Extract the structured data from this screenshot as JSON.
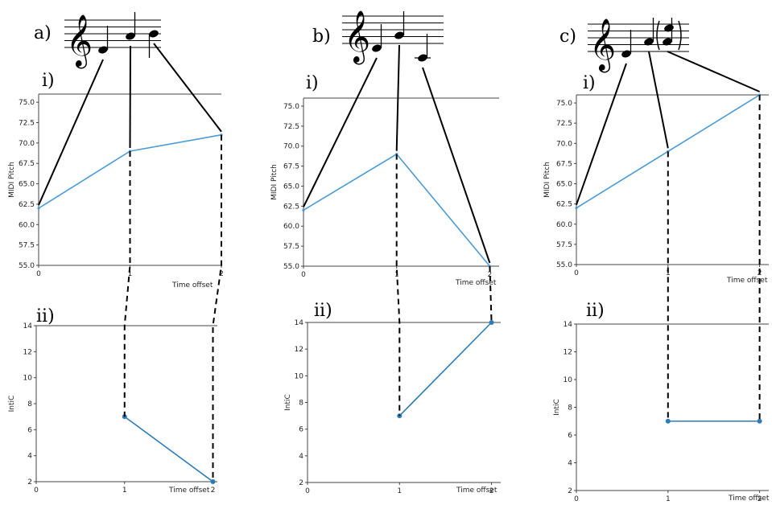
{
  "chart_data": [
    {
      "panel": "a)",
      "plots": [
        {
          "sublabel": "i)",
          "type": "line",
          "xlabel": "Time offset",
          "ylabel": "MIDI Pitch",
          "xlim": [
            0,
            2
          ],
          "ylim": [
            55,
            76
          ],
          "xticks": [
            "0",
            "1",
            "2"
          ],
          "yticks": [
            "55.0",
            "57.5",
            "60.0",
            "62.5",
            "65.0",
            "67.5",
            "70.0",
            "72.5",
            "75.0"
          ],
          "x": [
            0,
            1,
            2
          ],
          "y": [
            62,
            69,
            71
          ],
          "color": "#4a9bd4"
        },
        {
          "sublabel": "ii)",
          "type": "line",
          "xlabel": "Time offset",
          "ylabel": "IntiC",
          "xlim": [
            0,
            2.05
          ],
          "ylim": [
            2,
            14
          ],
          "xticks": [
            "0",
            "1",
            "2"
          ],
          "yticks": [
            "2",
            "4",
            "6",
            "8",
            "10",
            "12",
            "14"
          ],
          "x": [
            1,
            2
          ],
          "y": [
            7,
            2
          ],
          "color": "#2c7bb6"
        }
      ]
    },
    {
      "panel": "b)",
      "plots": [
        {
          "sublabel": "i)",
          "type": "line",
          "xlabel": "Time offset",
          "ylabel": "MIDI Pitch",
          "xlim": [
            0,
            2.1
          ],
          "ylim": [
            55,
            76
          ],
          "xticks": [
            "0",
            "1",
            "2"
          ],
          "yticks": [
            "55.0",
            "57.5",
            "60.0",
            "62.5",
            "65.0",
            "67.5",
            "70.0",
            "72.5",
            "75.0"
          ],
          "x": [
            0,
            1,
            2
          ],
          "y": [
            62,
            69,
            55
          ],
          "color": "#4a9bd4"
        },
        {
          "sublabel": "ii)",
          "type": "line",
          "xlabel": "Time offset",
          "ylabel": "IntiC",
          "xlim": [
            0,
            2.1
          ],
          "ylim": [
            2,
            14
          ],
          "xticks": [
            "0",
            "1",
            "2"
          ],
          "yticks": [
            "2",
            "4",
            "6",
            "8",
            "10",
            "12",
            "14"
          ],
          "x": [
            1,
            2
          ],
          "y": [
            7,
            14
          ],
          "color": "#2c7bb6"
        }
      ]
    },
    {
      "panel": "c)",
      "plots": [
        {
          "sublabel": "i)",
          "type": "line",
          "xlabel": "Time offset",
          "ylabel": "MIDI Pitch",
          "xlim": [
            0,
            2.1
          ],
          "ylim": [
            55,
            76
          ],
          "xticks": [
            "0",
            "1",
            "2"
          ],
          "yticks": [
            "55.0",
            "57.5",
            "60.0",
            "62.5",
            "65.0",
            "67.5",
            "70.0",
            "72.5",
            "75.0"
          ],
          "x": [
            0,
            1,
            2
          ],
          "y": [
            62,
            69,
            76
          ],
          "color": "#4a9bd4"
        },
        {
          "sublabel": "ii)",
          "type": "line",
          "xlabel": "Time offset",
          "ylabel": "IntiC",
          "xlim": [
            0,
            2.1
          ],
          "ylim": [
            2,
            14
          ],
          "xticks": [
            "0",
            "1",
            "2"
          ],
          "yticks": [
            "2",
            "4",
            "6",
            "8",
            "10",
            "12",
            "14"
          ],
          "x": [
            1,
            2
          ],
          "y": [
            7,
            7
          ],
          "color": "#2c7bb6"
        }
      ]
    }
  ]
}
